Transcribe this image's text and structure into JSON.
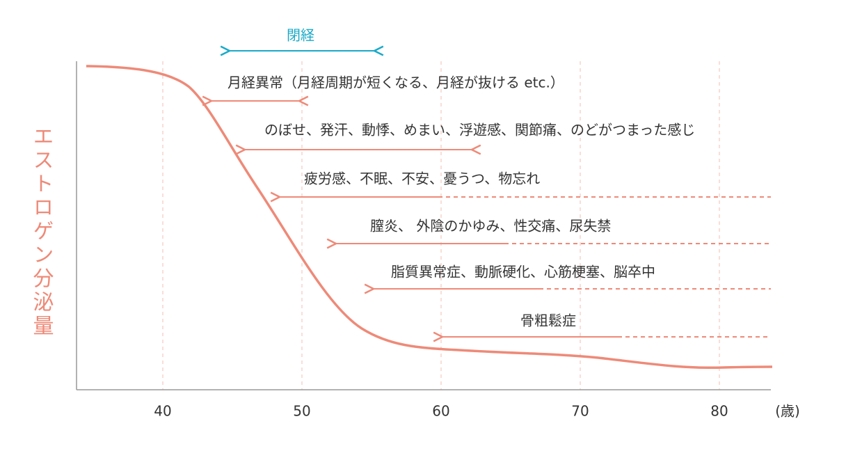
{
  "y_axis_label": "エストロゲン分泌量",
  "x_axis": {
    "unit_label": "(歳)",
    "xlim": [
      33.8,
      83.7
    ],
    "ticks": [
      40,
      50,
      60,
      70,
      80
    ]
  },
  "menopause": {
    "label": "閉経"
  },
  "symptoms": [
    {
      "label": "月経異常（月経周期が短くなる、月経が抜ける etc.）"
    },
    {
      "label": "のぼせ、発汗、動悸、めまい、浮遊感、関節痛、のどがつまった感じ"
    },
    {
      "label": "疲労感、不眠、不安、憂うつ、物忘れ"
    },
    {
      "label": "膣炎、 外陰のかゆみ、性交痛、尿失禁"
    },
    {
      "label": "脂質異常症、動脈硬化、心筋梗塞、脳卒中"
    },
    {
      "label": "骨粗鬆症"
    }
  ]
}
